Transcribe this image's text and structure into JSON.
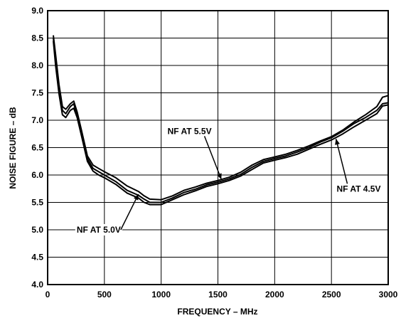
{
  "chart_data": {
    "type": "line",
    "xlabel": "FREQUENCY – MHz",
    "ylabel": "NOISE FIGURE – dB",
    "xlim": [
      0,
      3000
    ],
    "ylim": [
      4.0,
      9.0
    ],
    "xticks": [
      0,
      500,
      1000,
      1500,
      2000,
      2500,
      3000
    ],
    "yticks": [
      4.0,
      4.5,
      5.0,
      5.5,
      6.0,
      6.5,
      7.0,
      7.5,
      8.0,
      8.5,
      9.0
    ],
    "xtick_labels": [
      "0",
      "500",
      "1000",
      "1500",
      "2000",
      "2500",
      "3000"
    ],
    "ytick_labels": [
      "4.0",
      "4.5",
      "5.0",
      "5.5",
      "6.0",
      "6.5",
      "7.0",
      "7.5",
      "8.0",
      "8.5",
      "9.0"
    ],
    "grid": true,
    "series": [
      {
        "name": "NF AT 5.5V",
        "x": [
          50,
          70,
          100,
          130,
          160,
          200,
          230,
          260,
          300,
          350,
          400,
          450,
          500,
          600,
          700,
          800,
          850,
          900,
          1000,
          1100,
          1200,
          1300,
          1400,
          1500,
          1600,
          1700,
          1800,
          1900,
          2000,
          2100,
          2200,
          2300,
          2400,
          2500,
          2600,
          2700,
          2800,
          2900,
          2950,
          3000
        ],
        "y": [
          8.55,
          8.2,
          7.65,
          7.25,
          7.2,
          7.3,
          7.35,
          7.15,
          6.8,
          6.35,
          6.18,
          6.12,
          6.06,
          5.95,
          5.8,
          5.7,
          5.62,
          5.56,
          5.55,
          5.62,
          5.72,
          5.78,
          5.85,
          5.9,
          5.96,
          6.05,
          6.18,
          6.28,
          6.33,
          6.38,
          6.45,
          6.53,
          6.62,
          6.7,
          6.82,
          6.97,
          7.1,
          7.25,
          7.42,
          7.45
        ]
      },
      {
        "name": "NF AT 5.0V",
        "x": [
          50,
          70,
          100,
          130,
          160,
          200,
          230,
          260,
          300,
          350,
          400,
          450,
          500,
          600,
          700,
          800,
          850,
          900,
          1000,
          1100,
          1200,
          1300,
          1400,
          1500,
          1600,
          1700,
          1800,
          1900,
          2000,
          2100,
          2200,
          2300,
          2400,
          2500,
          2600,
          2700,
          2800,
          2900,
          2950,
          3000
        ],
        "y": [
          8.5,
          8.1,
          7.55,
          7.18,
          7.12,
          7.25,
          7.3,
          7.1,
          6.75,
          6.3,
          6.12,
          6.06,
          6.0,
          5.88,
          5.72,
          5.63,
          5.56,
          5.5,
          5.5,
          5.58,
          5.68,
          5.74,
          5.82,
          5.87,
          5.93,
          6.01,
          6.14,
          6.25,
          6.3,
          6.35,
          6.42,
          6.5,
          6.6,
          6.68,
          6.8,
          6.94,
          7.05,
          7.18,
          7.3,
          7.32
        ]
      },
      {
        "name": "NF AT 4.5V",
        "x": [
          50,
          70,
          100,
          130,
          160,
          200,
          230,
          260,
          300,
          350,
          400,
          450,
          500,
          600,
          700,
          800,
          850,
          900,
          1000,
          1100,
          1200,
          1300,
          1400,
          1500,
          1600,
          1700,
          1800,
          1900,
          2000,
          2100,
          2200,
          2300,
          2400,
          2500,
          2600,
          2700,
          2800,
          2900,
          2950,
          3000
        ],
        "y": [
          8.45,
          8.0,
          7.48,
          7.1,
          7.05,
          7.18,
          7.22,
          7.05,
          6.7,
          6.25,
          6.07,
          6.0,
          5.95,
          5.83,
          5.67,
          5.58,
          5.5,
          5.46,
          5.46,
          5.55,
          5.64,
          5.71,
          5.79,
          5.84,
          5.9,
          5.98,
          6.1,
          6.22,
          6.27,
          6.32,
          6.38,
          6.47,
          6.56,
          6.64,
          6.75,
          6.88,
          7.0,
          7.12,
          7.26,
          7.28
        ]
      }
    ],
    "annotations": [
      {
        "series": "NF AT 5.5V",
        "text": "NF AT 5.5V",
        "x": 1530,
        "y": 5.92,
        "tx": 1250,
        "ty": 6.8,
        "anchor": "middle"
      },
      {
        "series": "NF AT 5.0V",
        "text": "NF AT 5.0V",
        "x": 800,
        "y": 5.65,
        "tx": 450,
        "ty": 5.0,
        "anchor": "middle"
      },
      {
        "series": "NF AT 4.5V",
        "text": "NF AT 4.5V",
        "x": 2540,
        "y": 6.66,
        "tx": 2740,
        "ty": 5.75,
        "anchor": "middle"
      }
    ]
  }
}
